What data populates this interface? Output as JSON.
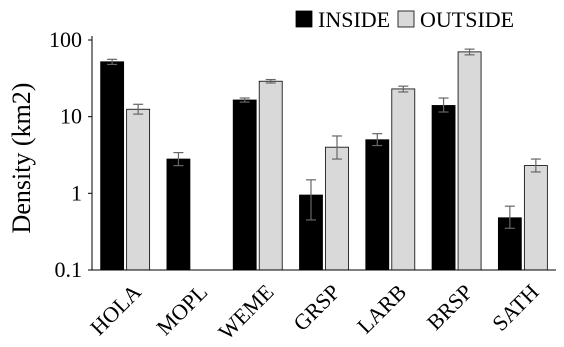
{
  "chart_data": {
    "type": "bar",
    "ylabel": "Density (km2)",
    "yscale": "log",
    "ylim": [
      0.1,
      100
    ],
    "yticks": [
      "0.1",
      "1",
      "10",
      "100"
    ],
    "categories": [
      "HOLA",
      "MOPL",
      "WEME",
      "GRSP",
      "LARB",
      "BRSP",
      "SATH"
    ],
    "series": [
      {
        "name": "INSIDE",
        "color": "#000000",
        "values": [
          52,
          2.8,
          16.5,
          0.95,
          5.0,
          14.0,
          0.48
        ],
        "error": [
          [
            48,
            56
          ],
          [
            2.3,
            3.4
          ],
          [
            15.5,
            17.5
          ],
          [
            0.45,
            1.5
          ],
          [
            4.2,
            6.0
          ],
          [
            11.5,
            17.5
          ],
          [
            0.35,
            0.68
          ]
        ]
      },
      {
        "name": "OUTSIDE",
        "color": "#d9d9d9",
        "values": [
          12.5,
          0.1,
          29,
          4.0,
          23,
          70,
          2.3
        ],
        "error": [
          [
            10.8,
            14.5
          ],
          null,
          [
            27.5,
            30.5
          ],
          [
            2.8,
            5.6
          ],
          [
            21,
            25
          ],
          [
            64,
            76
          ],
          [
            1.9,
            2.8
          ]
        ]
      }
    ],
    "legend": "top-right",
    "grid": false
  }
}
